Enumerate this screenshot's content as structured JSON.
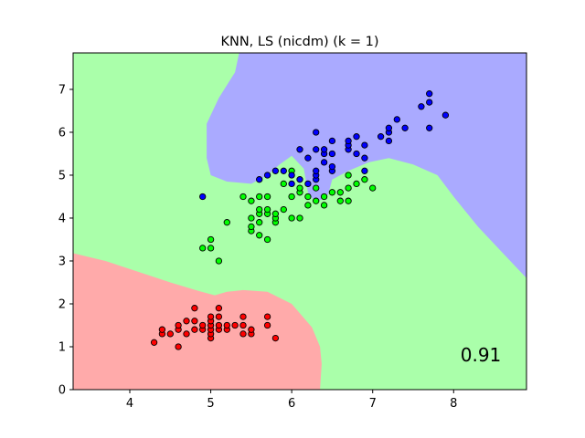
{
  "chart_data": {
    "type": "scatter",
    "title": "KNN, LS (nicdm) (k = 1)",
    "xlabel": "",
    "ylabel": "",
    "xlim": [
      3.3,
      8.9
    ],
    "ylim": [
      0,
      7.85
    ],
    "xticks": [
      4,
      5,
      6,
      7,
      8
    ],
    "yticks": [
      0,
      1,
      2,
      3,
      4,
      5,
      6,
      7
    ],
    "grid": false,
    "score_text": "0.91",
    "colors": {
      "region_red": "#ffaaaa",
      "region_green": "#aaffaa",
      "region_blue": "#aaaaff",
      "point_red": "#ff0000",
      "point_green": "#00ff00",
      "point_blue": "#0000ff"
    },
    "regions": [
      {
        "class": "red",
        "polygon": [
          [
            3.3,
            3.18
          ],
          [
            3.7,
            3.0
          ],
          [
            4.1,
            2.75
          ],
          [
            4.5,
            2.5
          ],
          [
            4.85,
            2.3
          ],
          [
            5.05,
            2.2
          ],
          [
            5.2,
            2.28
          ],
          [
            5.4,
            2.32
          ],
          [
            5.7,
            2.28
          ],
          [
            6.0,
            2.0
          ],
          [
            6.25,
            1.45
          ],
          [
            6.35,
            1.0
          ],
          [
            6.37,
            0.6
          ],
          [
            6.35,
            0
          ],
          [
            3.3,
            0
          ]
        ]
      },
      {
        "class": "blue",
        "polygon": [
          [
            6.35,
            7.85
          ],
          [
            8.9,
            7.85
          ],
          [
            8.9,
            2.6
          ],
          [
            8.6,
            3.2
          ],
          [
            8.3,
            3.8
          ],
          [
            8.0,
            4.5
          ],
          [
            7.8,
            5.0
          ],
          [
            7.5,
            5.25
          ],
          [
            7.2,
            5.4
          ],
          [
            6.95,
            5.3
          ],
          [
            6.7,
            5.1
          ],
          [
            6.5,
            4.9
          ],
          [
            6.45,
            4.55
          ],
          [
            6.3,
            4.35
          ],
          [
            6.2,
            4.6
          ],
          [
            6.15,
            5.15
          ],
          [
            6.0,
            5.45
          ],
          [
            5.85,
            5.25
          ],
          [
            5.7,
            5.0
          ],
          [
            5.5,
            4.8
          ],
          [
            5.2,
            4.85
          ],
          [
            5.0,
            5.0
          ],
          [
            4.95,
            5.4
          ],
          [
            4.95,
            6.2
          ],
          [
            5.1,
            6.8
          ],
          [
            5.3,
            7.4
          ],
          [
            5.35,
            7.85
          ]
        ]
      }
    ],
    "series": [
      {
        "name": "",
        "color": "#ff0000",
        "points": [
          [
            4.3,
            1.1
          ],
          [
            4.4,
            1.3
          ],
          [
            4.4,
            1.4
          ],
          [
            4.5,
            1.3
          ],
          [
            4.6,
            1.0
          ],
          [
            4.6,
            1.4
          ],
          [
            4.6,
            1.5
          ],
          [
            4.7,
            1.3
          ],
          [
            4.7,
            1.6
          ],
          [
            4.8,
            1.4
          ],
          [
            4.8,
            1.6
          ],
          [
            4.8,
            1.9
          ],
          [
            4.9,
            1.4
          ],
          [
            4.9,
            1.5
          ],
          [
            5.0,
            1.2
          ],
          [
            5.0,
            1.3
          ],
          [
            5.0,
            1.4
          ],
          [
            5.0,
            1.5
          ],
          [
            5.0,
            1.6
          ],
          [
            5.0,
            1.7
          ],
          [
            5.1,
            1.4
          ],
          [
            5.1,
            1.5
          ],
          [
            5.1,
            1.7
          ],
          [
            5.1,
            1.9
          ],
          [
            5.2,
            1.4
          ],
          [
            5.2,
            1.5
          ],
          [
            5.3,
            1.5
          ],
          [
            5.4,
            1.3
          ],
          [
            5.4,
            1.5
          ],
          [
            5.4,
            1.7
          ],
          [
            5.5,
            1.3
          ],
          [
            5.5,
            1.4
          ],
          [
            5.7,
            1.5
          ],
          [
            5.7,
            1.7
          ],
          [
            5.8,
            1.2
          ]
        ]
      },
      {
        "name": "",
        "color": "#00ff00",
        "points": [
          [
            4.9,
            3.3
          ],
          [
            5.0,
            3.3
          ],
          [
            5.0,
            3.5
          ],
          [
            5.1,
            3.0
          ],
          [
            5.2,
            3.9
          ],
          [
            5.4,
            4.5
          ],
          [
            5.5,
            3.7
          ],
          [
            5.5,
            3.8
          ],
          [
            5.5,
            4.0
          ],
          [
            5.5,
            4.4
          ],
          [
            5.6,
            3.6
          ],
          [
            5.6,
            3.9
          ],
          [
            5.6,
            4.1
          ],
          [
            5.6,
            4.2
          ],
          [
            5.6,
            4.5
          ],
          [
            5.7,
            3.5
          ],
          [
            5.7,
            4.1
          ],
          [
            5.7,
            4.2
          ],
          [
            5.7,
            4.5
          ],
          [
            5.8,
            3.9
          ],
          [
            5.8,
            4.0
          ],
          [
            5.8,
            4.1
          ],
          [
            5.9,
            4.2
          ],
          [
            5.9,
            4.8
          ],
          [
            6.0,
            4.0
          ],
          [
            6.0,
            4.5
          ],
          [
            6.0,
            5.1
          ],
          [
            6.1,
            4.0
          ],
          [
            6.1,
            4.6
          ],
          [
            6.1,
            4.7
          ],
          [
            6.2,
            4.3
          ],
          [
            6.2,
            4.5
          ],
          [
            6.3,
            4.4
          ],
          [
            6.3,
            4.7
          ],
          [
            6.4,
            4.3
          ],
          [
            6.4,
            4.5
          ],
          [
            6.5,
            4.6
          ],
          [
            6.6,
            4.4
          ],
          [
            6.6,
            4.6
          ],
          [
            6.7,
            4.4
          ],
          [
            6.7,
            4.7
          ],
          [
            6.7,
            5.0
          ],
          [
            6.8,
            4.8
          ],
          [
            6.9,
            4.9
          ],
          [
            7.0,
            4.7
          ]
        ]
      },
      {
        "name": "",
        "color": "#0000ff",
        "points": [
          [
            4.9,
            4.5
          ],
          [
            5.6,
            4.9
          ],
          [
            5.7,
            5.0
          ],
          [
            5.8,
            5.1
          ],
          [
            5.9,
            5.1
          ],
          [
            6.0,
            4.8
          ],
          [
            6.0,
            5.0
          ],
          [
            6.1,
            4.9
          ],
          [
            6.1,
            5.6
          ],
          [
            6.2,
            4.8
          ],
          [
            6.2,
            5.4
          ],
          [
            6.3,
            4.9
          ],
          [
            6.3,
            5.0
          ],
          [
            6.3,
            5.1
          ],
          [
            6.3,
            5.6
          ],
          [
            6.3,
            6.0
          ],
          [
            6.4,
            5.3
          ],
          [
            6.4,
            5.5
          ],
          [
            6.4,
            5.6
          ],
          [
            6.5,
            5.1
          ],
          [
            6.5,
            5.2
          ],
          [
            6.5,
            5.5
          ],
          [
            6.5,
            5.8
          ],
          [
            6.7,
            5.6
          ],
          [
            6.7,
            5.7
          ],
          [
            6.7,
            5.8
          ],
          [
            6.8,
            5.5
          ],
          [
            6.8,
            5.9
          ],
          [
            6.9,
            5.1
          ],
          [
            6.9,
            5.4
          ],
          [
            6.9,
            5.7
          ],
          [
            7.1,
            5.9
          ],
          [
            7.2,
            5.8
          ],
          [
            7.2,
            6.0
          ],
          [
            7.2,
            6.1
          ],
          [
            7.3,
            6.3
          ],
          [
            7.4,
            6.1
          ],
          [
            7.6,
            6.6
          ],
          [
            7.7,
            6.1
          ],
          [
            7.7,
            6.7
          ],
          [
            7.7,
            6.9
          ],
          [
            7.9,
            6.4
          ]
        ]
      }
    ]
  }
}
